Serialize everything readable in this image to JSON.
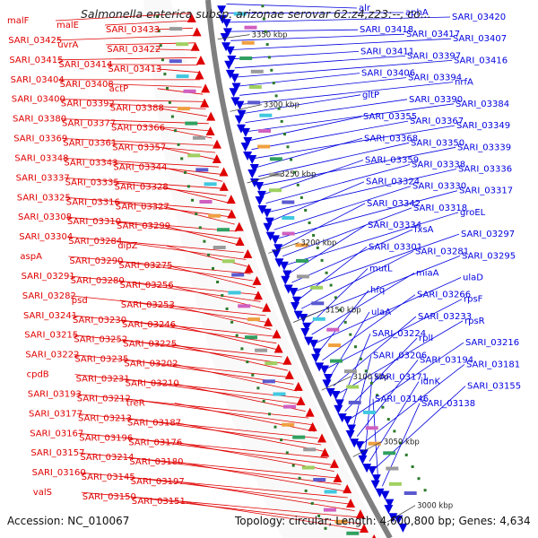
{
  "header": {
    "title": "Salmonella enterica subsp. arizonae serovar 62:z4,z23:--, co..."
  },
  "footer": {
    "accession": "Accession: NC_010067",
    "topology": "Topology: circular; Length: 4,600,800 bp; Genes: 4,634"
  },
  "colors": {
    "forward": "#e00000",
    "reverse": "#0000e0",
    "backbone": "#7f7f7f",
    "tick": "#2a7a2a"
  },
  "ticks": [
    "3350 kbp",
    "3300 kbp",
    "3250 kbp",
    "3200 kbp",
    "3150 kbp",
    "3100 kbp",
    "3050 kbp",
    "3000 kbp"
  ],
  "labels_left": [
    "malF",
    "malE",
    "SARI_03433",
    "SARI_03425",
    "uvrA",
    "SARI_03422",
    "SARI_03415",
    "SARI_03414",
    "SARI_03413",
    "SARI_03404",
    "SARI_03408",
    "actP",
    "SARI_03400",
    "SARI_03392",
    "SARI_03388",
    "SARI_03380",
    "SARI_03377",
    "SARI_03366",
    "SARI_03369",
    "SARI_03361",
    "SARI_03357",
    "SARI_03348",
    "SARI_03343",
    "SARI_03344",
    "SARI_03337",
    "SARI_03335",
    "SARI_03328",
    "SARI_03325",
    "SARI_03316",
    "SARI_03327",
    "SARI_03308",
    "SARI_03310",
    "SARI_03299",
    "SARI_03304",
    "SARI_03284",
    "dipZ",
    "aspA",
    "SARI_03290",
    "SARI_03275",
    "SARI_03291",
    "SARI_03280",
    "SARI_03256",
    "SARI_03282",
    "psd",
    "SARI_03253",
    "SARI_03241",
    "SARI_03230",
    "SARI_03246",
    "SARI_03215",
    "SARI_03252",
    "SARI_03225",
    "SARI_03222",
    "SARI_03235",
    "SARI_03202",
    "cpdB",
    "SARI_03231",
    "SARI_03210",
    "SARI_03193",
    "SARI_03212",
    "treR",
    "SARI_03177",
    "SARI_03213",
    "SARI_03187",
    "SARI_03167",
    "SARI_03196",
    "SARI_03176",
    "SARI_03157",
    "SARI_03214",
    "SARI_03180",
    "SARI_03160",
    "SARI_03145",
    "SARI_03197",
    "valS",
    "SARI_03150",
    "SARI_03151"
  ],
  "labels_right": [
    "alr",
    "aphA",
    "SARI_03420",
    "SARI_03418",
    "SARI_03417",
    "SARI_03407",
    "SARI_03411",
    "SARI_03397",
    "SARI_03416",
    "SARI_03406",
    "SARI_03394",
    "nrfA",
    "gltP",
    "SARI_03390",
    "SARI_03384",
    "SARI_03355",
    "SARI_03367",
    "SARI_03349",
    "SARI_03368",
    "SARI_03350",
    "SARI_03339",
    "SARI_03359",
    "SARI_03338",
    "SARI_03336",
    "SARI_03324",
    "SARI_03330",
    "SARI_03317",
    "SARI_03342",
    "SARI_03318",
    "groEL",
    "SARI_03334",
    "fxsA",
    "SARI_03297",
    "SARI_03301",
    "SARI_03281",
    "SARI_03295",
    "mutL",
    "miaA",
    "ulaD",
    "hfq",
    "SARI_03266",
    "rpsF",
    "ulaA",
    "SARI_03233",
    "rpsR",
    "SARI_03224",
    "rplI",
    "SARI_03216",
    "SARI_03206",
    "SARI_03194",
    "SARI_03181",
    "SARI_03171",
    "idnK",
    "SARI_03155",
    "SARI_03146",
    "SARI_03138"
  ]
}
